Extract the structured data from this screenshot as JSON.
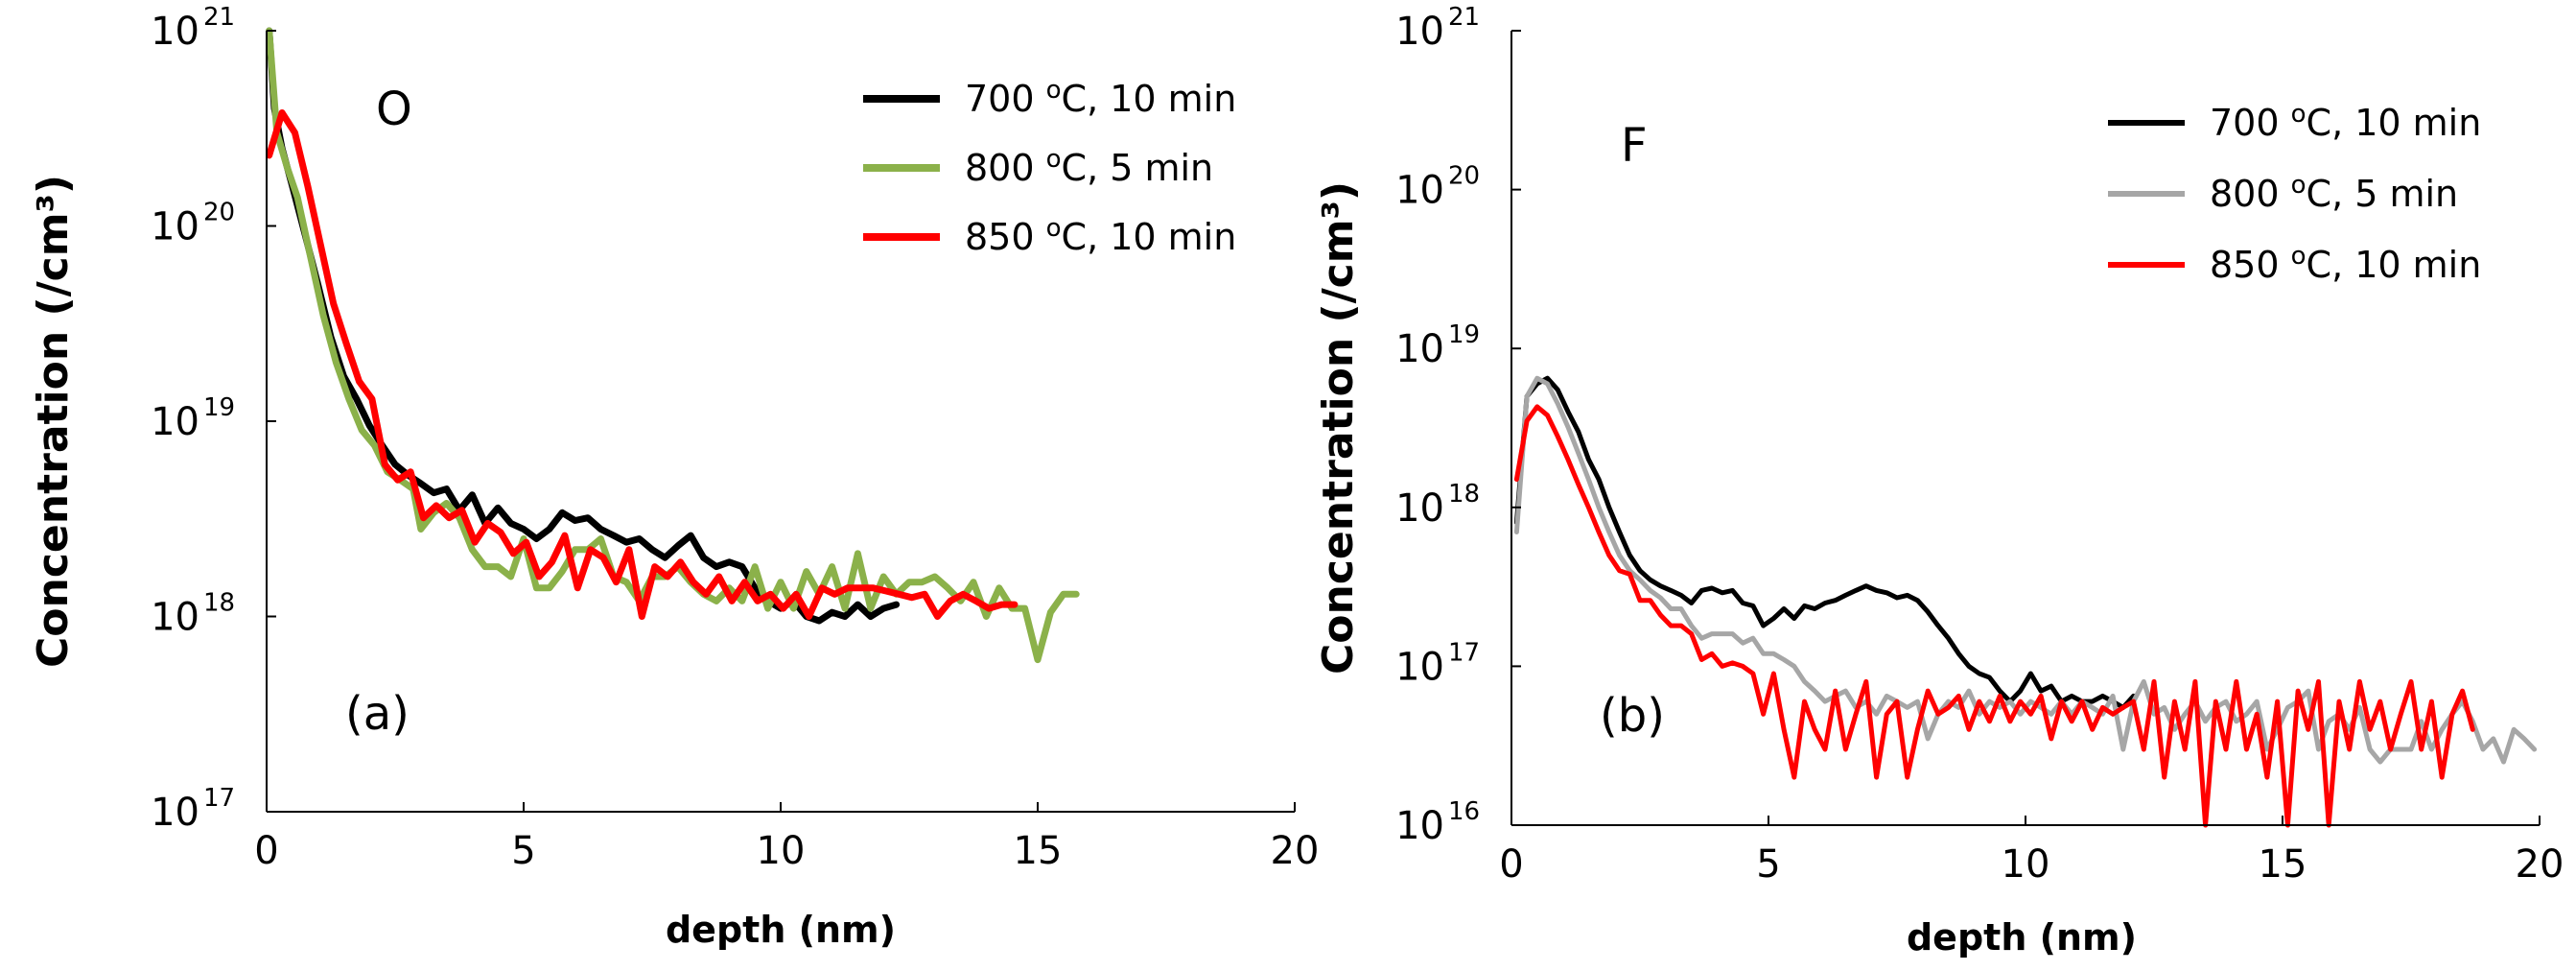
{
  "colors": {
    "black": "#000000",
    "green": "#8bb14a",
    "gray": "#a6a6a6",
    "red": "#ff0000"
  },
  "chart_data": [
    {
      "type": "line",
      "yscale": "log",
      "ylabel": "Concentration (/cm³)",
      "xlabel": "depth (nm)",
      "xlim": [
        0,
        20
      ],
      "ylim": [
        1e+17,
        1e+21
      ],
      "xticks": [
        "0",
        "5",
        "10",
        "15",
        "20"
      ],
      "yticks": [
        {
          "base": "10",
          "exp": "17"
        },
        {
          "base": "10",
          "exp": "18"
        },
        {
          "base": "10",
          "exp": "19"
        },
        {
          "base": "10",
          "exp": "20"
        },
        {
          "base": "10",
          "exp": "21"
        }
      ],
      "element_label": "O",
      "panel_label": "(a)",
      "series": [
        {
          "name": "700 °C, 10 min",
          "temp": "700",
          "deg": "o",
          "unit": "C, 10 min",
          "color": "#000000",
          "stroke": 7,
          "x": [
            0.05,
            0.15,
            0.3,
            0.5,
            0.75,
            1.0,
            1.25,
            1.5,
            1.75,
            2.0,
            2.25,
            2.5,
            2.75,
            3.0,
            3.25,
            3.5,
            3.75,
            4.0,
            4.25,
            4.5,
            4.75,
            5.0,
            5.25,
            5.5,
            5.75,
            6.0,
            6.25,
            6.5,
            6.75,
            7.0,
            7.25,
            7.5,
            7.75,
            8.0,
            8.25,
            8.5,
            8.75,
            9.0,
            9.25,
            9.5,
            9.75,
            10.0,
            10.25,
            10.5,
            10.75,
            11.0,
            11.25,
            11.5,
            11.75,
            12.0,
            12.25
          ],
          "y": [
            1e+21,
            4e+20,
            2.5e+20,
            1.6e+20,
            9e+19,
            5e+19,
            2.7e+19,
            1.7e+19,
            1.3e+19,
            9.5e+18,
            7.5e+18,
            6e+18,
            5.3e+18,
            4.8e+18,
            4.3e+18,
            4.5e+18,
            3.5e+18,
            4.2e+18,
            3e+18,
            3.6e+18,
            3e+18,
            2.8e+18,
            2.5e+18,
            2.8e+18,
            3.4e+18,
            3.1e+18,
            3.2e+18,
            2.8e+18,
            2.6e+18,
            2.4e+18,
            2.5e+18,
            2.2e+18,
            2e+18,
            2.3e+18,
            2.6e+18,
            2e+18,
            1.8e+18,
            1.9e+18,
            1.8e+18,
            1.4e+18,
            1.2e+18,
            1.1e+18,
            1.2e+18,
            1e+18,
            9.5e+17,
            1.05e+18,
            1e+18,
            1.15e+18,
            1e+18,
            1.1e+18,
            1.15e+18
          ]
        },
        {
          "name": "800 °C, 5 min",
          "temp": "800",
          "deg": "o",
          "unit": "C, 5 min",
          "color": "#8bb14a",
          "stroke": 7,
          "x": [
            0.05,
            0.2,
            0.4,
            0.6,
            0.85,
            1.1,
            1.35,
            1.6,
            1.85,
            2.1,
            2.35,
            2.6,
            2.85,
            3.0,
            3.25,
            3.5,
            3.75,
            4.0,
            4.25,
            4.5,
            4.75,
            5.0,
            5.25,
            5.5,
            5.75,
            6.0,
            6.25,
            6.5,
            6.75,
            7.0,
            7.25,
            7.5,
            7.75,
            8.0,
            8.25,
            8.5,
            8.75,
            9.0,
            9.25,
            9.5,
            9.75,
            10.0,
            10.25,
            10.5,
            10.75,
            11.0,
            11.25,
            11.5,
            11.75,
            12.0,
            12.25,
            12.5,
            12.75,
            13.0,
            13.25,
            13.5,
            13.75,
            14.0,
            14.25,
            14.5,
            14.75,
            15.0,
            15.25,
            15.5,
            15.75
          ],
          "y": [
            1e+21,
            3e+20,
            2e+20,
            1.4e+20,
            7e+19,
            3.5e+19,
            2e+19,
            1.3e+19,
            9e+18,
            7.5e+18,
            5.5e+18,
            5e+18,
            4.5e+18,
            2.8e+18,
            3.4e+18,
            3.8e+18,
            3.2e+18,
            2.2e+18,
            1.8e+18,
            1.8e+18,
            1.6e+18,
            2.5e+18,
            1.4e+18,
            1.4e+18,
            1.7e+18,
            2.2e+18,
            2.2e+18,
            2.5e+18,
            1.6e+18,
            1.5e+18,
            1.2e+18,
            1.6e+18,
            1.6e+18,
            1.8e+18,
            1.5e+18,
            1.3e+18,
            1.2e+18,
            1.4e+18,
            1.2e+18,
            1.8e+18,
            1.1e+18,
            1.5e+18,
            1.1e+18,
            1.7e+18,
            1.3e+18,
            1.8e+18,
            1.1e+18,
            2.1e+18,
            1.1e+18,
            1.6e+18,
            1.3e+18,
            1.5e+18,
            1.5e+18,
            1.6e+18,
            1.4e+18,
            1.2e+18,
            1.5e+18,
            1e+18,
            1.4e+18,
            1.1e+18,
            1.1e+18,
            6e+17,
            1.05e+18,
            1.3e+18,
            1.3e+18
          ]
        },
        {
          "name": "850 °C, 10 min",
          "temp": "850",
          "deg": "o",
          "unit": "C, 10 min",
          "color": "#ff0000",
          "stroke": 7,
          "x": [
            0.05,
            0.3,
            0.55,
            0.8,
            1.05,
            1.3,
            1.55,
            1.8,
            2.05,
            2.3,
            2.55,
            2.8,
            3.05,
            3.3,
            3.55,
            3.8,
            4.05,
            4.3,
            4.55,
            4.8,
            5.05,
            5.3,
            5.55,
            5.8,
            6.05,
            6.3,
            6.55,
            6.8,
            7.05,
            7.3,
            7.55,
            7.8,
            8.05,
            8.3,
            8.55,
            8.8,
            9.05,
            9.3,
            9.55,
            9.8,
            10.05,
            10.3,
            10.55,
            10.8,
            11.05,
            11.3,
            11.55,
            11.8,
            12.05,
            12.3,
            12.55,
            12.8,
            13.05,
            13.3,
            13.55,
            13.8,
            14.05,
            14.3,
            14.55
          ],
          "y": [
            2.3e+20,
            3.8e+20,
            3e+20,
            1.6e+20,
            8e+19,
            4e+19,
            2.5e+19,
            1.6e+19,
            1.3e+19,
            6e+18,
            5e+18,
            5.5e+18,
            3.2e+18,
            3.7e+18,
            3.2e+18,
            3.5e+18,
            2.4e+18,
            3e+18,
            2.7e+18,
            2.1e+18,
            2.4e+18,
            1.6e+18,
            1.9e+18,
            2.6e+18,
            1.4e+18,
            2.2e+18,
            2e+18,
            1.5e+18,
            2.2e+18,
            1e+18,
            1.8e+18,
            1.6e+18,
            1.9e+18,
            1.5e+18,
            1.3e+18,
            1.6e+18,
            1.2e+18,
            1.5e+18,
            1.2e+18,
            1.3e+18,
            1.1e+18,
            1.3e+18,
            1e+18,
            1.4e+18,
            1.3e+18,
            1.4e+18,
            1.4e+18,
            1.4e+18,
            1.35e+18,
            1.3e+18,
            1.25e+18,
            1.3e+18,
            1e+18,
            1.2e+18,
            1.3e+18,
            1.2e+18,
            1.1e+18,
            1.15e+18,
            1.15e+18
          ]
        }
      ]
    },
    {
      "type": "line",
      "yscale": "log",
      "ylabel": "Concentration (/cm³)",
      "xlabel": "depth  (nm)",
      "xlim": [
        0,
        20
      ],
      "ylim": [
        1e+16,
        1e+21
      ],
      "xticks": [
        "0",
        "5",
        "10",
        "15",
        "20"
      ],
      "yticks": [
        {
          "base": "10",
          "exp": "16"
        },
        {
          "base": "10",
          "exp": "17"
        },
        {
          "base": "10",
          "exp": "18"
        },
        {
          "base": "10",
          "exp": "19"
        },
        {
          "base": "10",
          "exp": "20"
        },
        {
          "base": "10",
          "exp": "21"
        }
      ],
      "element_label": "F",
      "panel_label": "(b)",
      "series": [
        {
          "name": "700 °C, 10 min",
          "temp": "700",
          "deg": "o",
          "unit": "C, 10 min",
          "color": "#000000",
          "stroke": 5,
          "x": [
            0.1,
            0.3,
            0.5,
            0.7,
            0.9,
            1.1,
            1.3,
            1.5,
            1.7,
            1.9,
            2.1,
            2.3,
            2.5,
            2.7,
            2.9,
            3.1,
            3.3,
            3.5,
            3.7,
            3.9,
            4.1,
            4.3,
            4.5,
            4.7,
            4.9,
            5.1,
            5.3,
            5.5,
            5.7,
            5.9,
            6.1,
            6.3,
            6.5,
            6.7,
            6.9,
            7.1,
            7.3,
            7.5,
            7.7,
            7.9,
            8.1,
            8.3,
            8.5,
            8.7,
            8.9,
            9.1,
            9.3,
            9.5,
            9.7,
            9.9,
            10.1,
            10.3,
            10.5,
            10.7,
            10.9,
            11.1,
            11.3,
            11.5,
            11.7,
            11.9,
            12.1
          ],
          "y": [
            8e+17,
            5e+18,
            6e+18,
            6.5e+18,
            5.5e+18,
            4e+18,
            3e+18,
            2e+18,
            1.5e+18,
            1e+18,
            7e+17,
            5e+17,
            4e+17,
            3.5e+17,
            3.2e+17,
            3e+17,
            2.8e+17,
            2.5e+17,
            3e+17,
            3.1e+17,
            2.9e+17,
            3e+17,
            2.5e+17,
            2.4e+17,
            1.8e+17,
            2e+17,
            2.3e+17,
            2e+17,
            2.4e+17,
            2.3e+17,
            2.5e+17,
            2.6e+17,
            2.8e+17,
            3e+17,
            3.2e+17,
            3e+17,
            2.9e+17,
            2.7e+17,
            2.8e+17,
            2.6e+17,
            2.2e+17,
            1.8e+17,
            1.5e+17,
            1.2e+17,
            1e+17,
            9e+16,
            8.5e+16,
            7e+16,
            6e+16,
            7e+16,
            9e+16,
            7e+16,
            7.5e+16,
            6e+16,
            6.5e+16,
            6e+16,
            6e+16,
            6.5e+16,
            6e+16,
            5.5e+16,
            6.5e+16
          ]
        },
        {
          "name": "800 °C, 5 min",
          "temp": "800",
          "deg": "o",
          "unit": "C, 5 min",
          "color": "#a6a6a6",
          "stroke": 5,
          "x": [
            0.1,
            0.3,
            0.5,
            0.7,
            0.9,
            1.1,
            1.3,
            1.5,
            1.7,
            1.9,
            2.1,
            2.3,
            2.5,
            2.7,
            2.9,
            3.1,
            3.3,
            3.5,
            3.7,
            3.9,
            4.1,
            4.3,
            4.5,
            4.7,
            4.9,
            5.1,
            5.3,
            5.5,
            5.7,
            5.9,
            6.1,
            6.3,
            6.5,
            6.7,
            6.9,
            7.1,
            7.3,
            7.5,
            7.7,
            7.9,
            8.1,
            8.3,
            8.5,
            8.7,
            8.9,
            9.1,
            9.3,
            9.5,
            9.7,
            9.9,
            10.1,
            10.3,
            10.5,
            10.7,
            10.9,
            11.1,
            11.3,
            11.5,
            11.7,
            11.9,
            12.1,
            12.3,
            12.5,
            12.7,
            12.9,
            13.1,
            13.3,
            13.5,
            13.7,
            13.9,
            14.1,
            14.3,
            14.5,
            14.7,
            14.9,
            15.1,
            15.3,
            15.5,
            15.7,
            15.9,
            16.1,
            16.3,
            16.5,
            16.7,
            16.9,
            17.1,
            17.3,
            17.5,
            17.7,
            17.9,
            18.1,
            18.3,
            18.5,
            18.7,
            18.9,
            19.1,
            19.3,
            19.5,
            19.7,
            19.9
          ],
          "y": [
            7e+17,
            5e+18,
            6.5e+18,
            6e+18,
            4.5e+18,
            3.2e+18,
            2.2e+18,
            1.5e+18,
            1e+18,
            7e+17,
            5e+17,
            4e+17,
            3.5e+17,
            3e+17,
            2.7e+17,
            2.3e+17,
            2.3e+17,
            1.8e+17,
            1.5e+17,
            1.6e+17,
            1.6e+17,
            1.6e+17,
            1.4e+17,
            1.5e+17,
            1.2e+17,
            1.2e+17,
            1.1e+17,
            1e+17,
            8e+16,
            7e+16,
            6e+16,
            6.5e+16,
            7e+16,
            5.5e+16,
            6e+16,
            5e+16,
            6.5e+16,
            6e+16,
            5.5e+16,
            6e+16,
            3.5e+16,
            5e+16,
            6e+16,
            5.5e+16,
            7e+16,
            5e+16,
            6e+16,
            5.5e+16,
            6e+16,
            5e+16,
            6e+16,
            5.5e+16,
            5e+16,
            6e+16,
            5e+16,
            6e+16,
            5.5e+16,
            5e+16,
            6.5e+16,
            3e+16,
            6e+16,
            8e+16,
            5e+16,
            5.5e+16,
            4e+16,
            5e+16,
            6e+16,
            4.5e+16,
            5.5e+16,
            6e+16,
            4.5e+16,
            5e+16,
            6e+16,
            3e+16,
            4e+16,
            5.5e+16,
            6e+16,
            7e+16,
            3e+16,
            4.5e+16,
            5e+16,
            4e+16,
            5.5e+16,
            3e+16,
            2.5e+16,
            3e+16,
            3e+16,
            3e+16,
            4.5e+16,
            3e+16,
            4e+16,
            5e+16,
            6e+16,
            4.5e+16,
            3e+16,
            3.5e+16,
            2.5e+16,
            4e+16,
            3.5e+16,
            3e+16
          ]
        },
        {
          "name": "850 °C, 10 min",
          "temp": "850",
          "deg": "o",
          "unit": "C, 10 min",
          "color": "#ff0000",
          "stroke": 5,
          "x": [
            0.1,
            0.3,
            0.5,
            0.7,
            0.9,
            1.1,
            1.3,
            1.5,
            1.7,
            1.9,
            2.1,
            2.3,
            2.5,
            2.7,
            2.9,
            3.1,
            3.3,
            3.5,
            3.7,
            3.9,
            4.1,
            4.3,
            4.5,
            4.7,
            4.9,
            5.1,
            5.3,
            5.5,
            5.7,
            5.9,
            6.1,
            6.3,
            6.5,
            6.7,
            6.9,
            7.1,
            7.3,
            7.5,
            7.7,
            7.9,
            8.1,
            8.3,
            8.5,
            8.7,
            8.9,
            9.1,
            9.3,
            9.5,
            9.7,
            9.9,
            10.1,
            10.3,
            10.5,
            10.7,
            10.9,
            11.1,
            11.3,
            11.5,
            11.7,
            11.9,
            12.1,
            12.3,
            12.5,
            12.7,
            12.9,
            13.1,
            13.3,
            13.5,
            13.7,
            13.9,
            14.1,
            14.3,
            14.5,
            14.7,
            14.9,
            15.1,
            15.3,
            15.5,
            15.7,
            15.9,
            16.1,
            16.3,
            16.5,
            16.7,
            16.9,
            17.1,
            17.3,
            17.5,
            17.7,
            17.9,
            18.1,
            18.3,
            18.5,
            18.7
          ],
          "y": [
            1.5e+18,
            3.5e+18,
            4.3e+18,
            3.8e+18,
            2.8e+18,
            2e+18,
            1.4e+18,
            1e+18,
            7e+17,
            5e+17,
            4e+17,
            3.8e+17,
            2.6e+17,
            2.6e+17,
            2.1e+17,
            1.8e+17,
            1.8e+17,
            1.6e+17,
            1.1e+17,
            1.2e+17,
            1e+17,
            1.05e+17,
            1e+17,
            9e+16,
            5e+16,
            9e+16,
            4e+16,
            2e+16,
            6e+16,
            4e+16,
            3e+16,
            7e+16,
            3e+16,
            5e+16,
            8e+16,
            2e+16,
            5e+16,
            6e+16,
            2e+16,
            4e+16,
            7e+16,
            5e+16,
            5.5e+16,
            6.5e+16,
            4e+16,
            6e+16,
            4.5e+16,
            6.5e+16,
            4.5e+16,
            6e+16,
            5e+16,
            6.5e+16,
            3.5e+16,
            6e+16,
            4.5e+16,
            6e+16,
            4e+16,
            5.5e+16,
            5e+16,
            5.5e+16,
            6e+16,
            3e+16,
            8e+16,
            2e+16,
            6e+16,
            3e+16,
            8e+16,
            1e+16,
            6e+16,
            3e+16,
            8e+16,
            3e+16,
            5e+16,
            2e+16,
            6e+16,
            1e+16,
            7e+16,
            4e+16,
            8e+16,
            1e+16,
            6e+16,
            3e+16,
            8e+16,
            4e+16,
            6e+16,
            3e+16,
            5e+16,
            8e+16,
            3e+16,
            6e+16,
            2e+16,
            5e+16,
            7e+16,
            4e+16
          ]
        }
      ]
    }
  ]
}
